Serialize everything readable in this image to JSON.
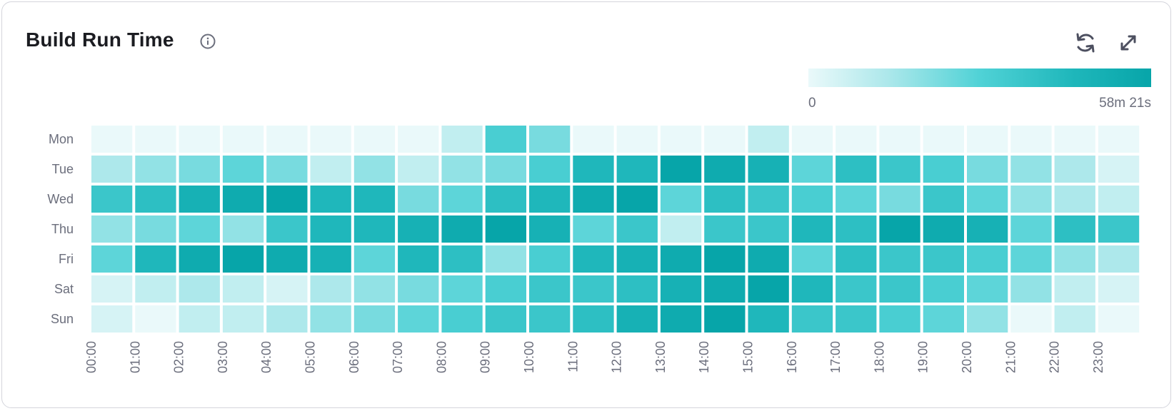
{
  "header": {
    "title": "Build Run Time",
    "info_icon": "info-circle-icon",
    "refresh_icon": "refresh-icon",
    "expand_icon": "expand-icon"
  },
  "legend": {
    "min_label": "0",
    "max_label": "58m 21s"
  },
  "chart_data": {
    "type": "heatmap",
    "title": "Build Run Time",
    "value_unit": "minutes",
    "value_range": [
      0,
      58.35
    ],
    "color_scale": [
      {
        "at": 0,
        "color": "#eaf9fa"
      },
      {
        "at": 0.23,
        "color": "#ade8eb"
      },
      {
        "at": 0.5,
        "color": "#50d2d6"
      },
      {
        "at": 0.77,
        "color": "#1fb7bb"
      },
      {
        "at": 1,
        "color": "#07a5a9"
      }
    ],
    "x_categories": [
      "00:00",
      "01:00",
      "02:00",
      "03:00",
      "04:00",
      "05:00",
      "06:00",
      "07:00",
      "08:00",
      "09:00",
      "10:00",
      "11:00",
      "12:00",
      "13:00",
      "14:00",
      "15:00",
      "16:00",
      "17:00",
      "18:00",
      "19:00",
      "20:00",
      "21:00",
      "22:00",
      "23:00"
    ],
    "y_categories": [
      "Mon",
      "Tue",
      "Wed",
      "Thu",
      "Fri",
      "Sat",
      "Sun"
    ],
    "values": [
      [
        0,
        0,
        0,
        0,
        0,
        0,
        0,
        0,
        9.0,
        31.4,
        22.4,
        0,
        0,
        0,
        0,
        9.0,
        0,
        0,
        0,
        0,
        0,
        0,
        0,
        0
      ],
      [
        13.5,
        18.0,
        22.4,
        26.9,
        22.4,
        9.0,
        18.0,
        9.0,
        18.0,
        22.4,
        31.4,
        44.9,
        44.9,
        58.4,
        53.9,
        49.4,
        26.9,
        40.4,
        35.9,
        31.4,
        22.4,
        18.0,
        13.5,
        4.5
      ],
      [
        35.9,
        40.4,
        49.4,
        53.9,
        58.4,
        44.9,
        44.9,
        22.4,
        26.9,
        40.4,
        44.9,
        53.9,
        58.4,
        26.9,
        40.4,
        35.9,
        31.4,
        26.9,
        22.4,
        35.9,
        26.9,
        18.0,
        13.5,
        9.0
      ],
      [
        18.0,
        22.4,
        26.9,
        18.0,
        35.9,
        44.9,
        44.9,
        49.4,
        53.9,
        58.4,
        49.4,
        26.9,
        35.9,
        9.0,
        35.9,
        35.9,
        44.9,
        40.4,
        58.4,
        53.9,
        49.4,
        26.9,
        40.4,
        35.9
      ],
      [
        26.9,
        44.9,
        53.9,
        58.4,
        53.9,
        49.4,
        26.9,
        44.9,
        40.4,
        18.0,
        31.4,
        44.9,
        49.4,
        53.9,
        58.4,
        53.9,
        26.9,
        40.4,
        35.9,
        35.9,
        31.4,
        26.9,
        18.0,
        13.5
      ],
      [
        4.5,
        9.0,
        13.5,
        9.0,
        4.5,
        13.5,
        18.0,
        22.4,
        26.9,
        31.4,
        35.9,
        35.9,
        40.4,
        49.4,
        53.9,
        58.4,
        44.9,
        35.9,
        35.9,
        31.4,
        26.9,
        18.0,
        9.0,
        4.5
      ],
      [
        4.5,
        0,
        9.0,
        9.0,
        13.5,
        18.0,
        22.4,
        26.9,
        31.4,
        35.9,
        35.9,
        40.4,
        49.4,
        53.9,
        58.4,
        44.9,
        35.9,
        35.9,
        31.4,
        26.9,
        18.0,
        0,
        9.0,
        0
      ]
    ],
    "legend_position": "top-right",
    "grid": false
  }
}
